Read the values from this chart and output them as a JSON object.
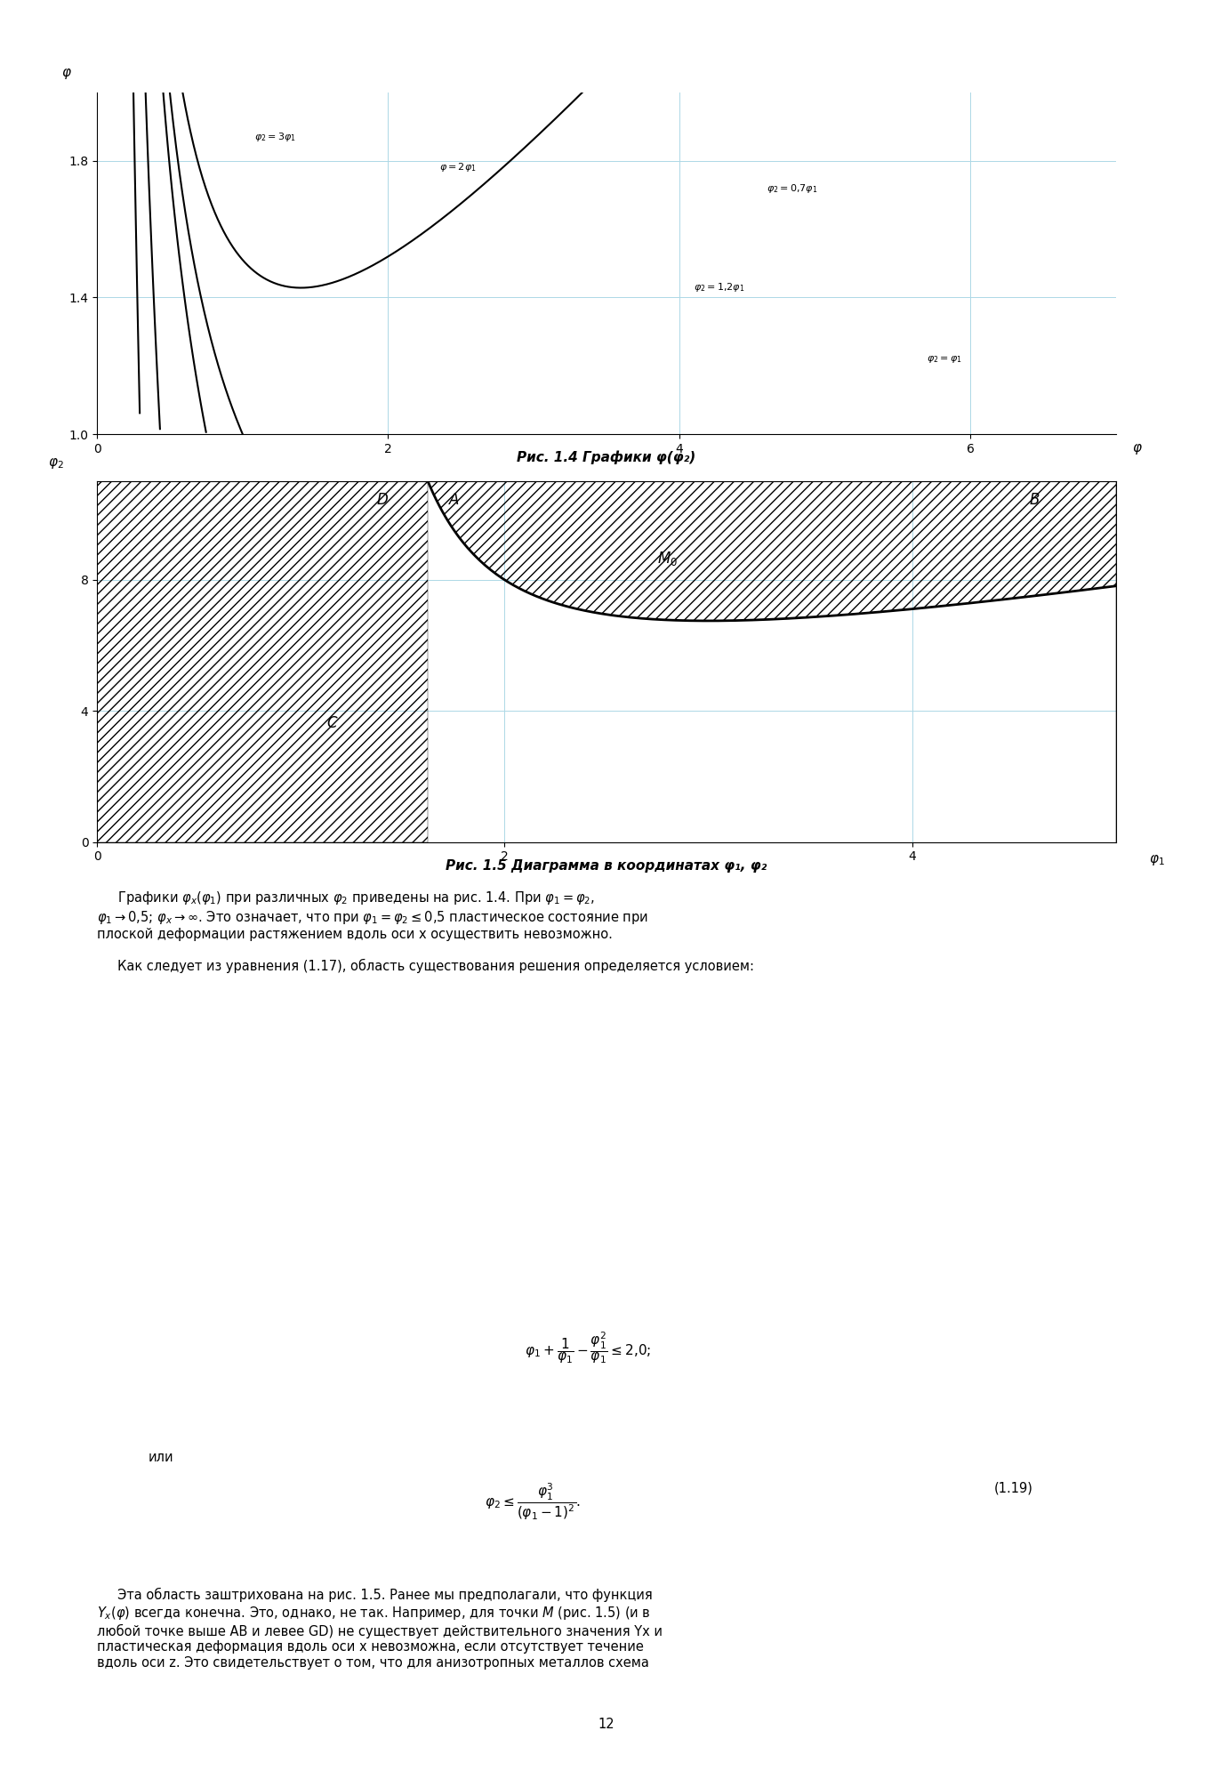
{
  "fig_width": 13.64,
  "fig_height": 20.0,
  "bg_color": "#ffffff",
  "chart1": {
    "title": "",
    "xlabel": "φ",
    "ylabel": "φ",
    "xlim": [
      0,
      7
    ],
    "ylim": [
      1.0,
      2.0
    ],
    "yticks": [
      1.0,
      1.4,
      1.8
    ],
    "xticks": [
      0,
      2,
      4,
      6
    ],
    "curves": [
      {
        "label": "φ₂=3φ₁",
        "phi2_over_phi1": 3.0
      },
      {
        "label": "φ=2φ₁",
        "phi2_over_phi1": 2.0
      },
      {
        "label": "φ₂=1,2φ₁",
        "phi2_over_phi1": 1.2
      },
      {
        "label": "φ₂=φ₁",
        "phi2_over_phi1": 1.0
      },
      {
        "label": "φ₂=0,7φ₁",
        "phi2_over_phi1": 0.7
      }
    ],
    "caption": "Рис. 1.4 Графики φ(φ₂)"
  },
  "chart2": {
    "xlabel": "φ₁",
    "ylabel": "φ₂",
    "xlim": [
      0,
      5
    ],
    "ylim": [
      0,
      11
    ],
    "yticks": [
      0,
      4,
      8
    ],
    "xticks": [
      0,
      2,
      4
    ],
    "labels": [
      "D",
      "A",
      "B",
      "M_0",
      "C"
    ],
    "caption": "Рис. 1.5 Диаграмма в координатах φ₁, φ₂"
  },
  "text_blocks": [
    {
      "text": "Графики φₓ(φ₁) при различных φ₂ приведены на рис. 1.4. При φ₁ = φ₂, φ₁→0,5; φₓ→∞. Это означает, что при φ₁ = φ₂ ≤ 0,5 пластическое состояние при плоской деформации растяжением вдоль оси x осуществить невозможно.",
      "style": "body"
    },
    {
      "text": "Как следует из уравнения (1.17), область существования решения определя-ется условием:",
      "style": "body"
    },
    {
      "text": "φ₁ + 1/φ₁ − φ₁²/φ₁ ≤ 2,0;",
      "style": "formula"
    },
    {
      "text": "или",
      "style": "body_left"
    },
    {
      "text": "φ₂ ≤ φ₁³/(φ₁−1)².",
      "style": "formula_numbered",
      "number": "(1.19)"
    },
    {
      "text": "Эта область заштрихована на рис. 1.5. Ранее мы предполагали, что функция Yₓ(φ) всегда конечна. Это, однако, не так. Например, для точки M (рис. 1.5) (и в любой точке выше AB и левее GD) не существует действительного значения Yₓ и пластическая деформация вдоль оси x невозможна, если отсутствует течение вдоль оси z. Это свидетельствует о том, что для анизотропных металлов схема",
      "style": "body"
    }
  ],
  "page_number": "12"
}
